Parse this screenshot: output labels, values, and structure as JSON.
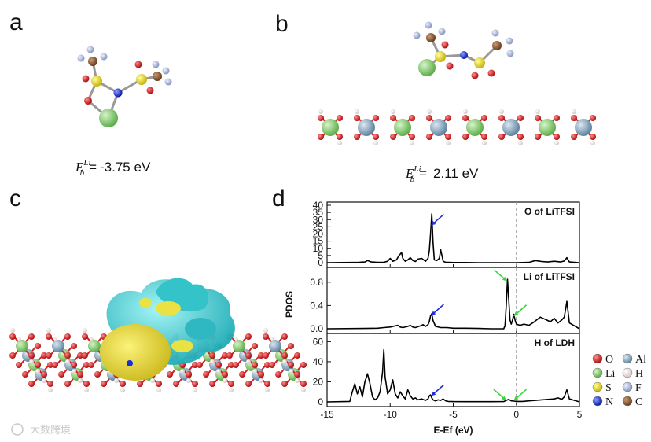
{
  "panels": {
    "a": {
      "label": "a",
      "energy_value": "-3.75 eV"
    },
    "b": {
      "label": "b",
      "energy_value": "2.11 eV"
    },
    "c": {
      "label": "c"
    },
    "d": {
      "label": "d"
    }
  },
  "energy_symbol": {
    "base": "E",
    "sub": "b",
    "sup": "Li",
    "eq": "="
  },
  "legend": {
    "items": [
      {
        "symbol": "O",
        "color": "#d01818"
      },
      {
        "symbol": "Li",
        "color": "#7cc66a"
      },
      {
        "symbol": "S",
        "color": "#e6dc1c"
      },
      {
        "symbol": "N",
        "color": "#1a2fd0"
      },
      {
        "symbol": "Al",
        "color": "#7fa0b6"
      },
      {
        "symbol": "H",
        "color": "#f2dede"
      },
      {
        "symbol": "F",
        "color": "#a9b6d6"
      },
      {
        "symbol": "C",
        "color": "#8a5a36"
      }
    ]
  },
  "watermark": "大数跨境",
  "chart_data": {
    "type": "line",
    "xlabel": "E-Ef (eV)",
    "ylabel": "PDOS",
    "xlim": [
      -15,
      5
    ],
    "xticks": [
      -15,
      -10,
      -5,
      0,
      5
    ],
    "panels": [
      {
        "title": "O of LiTFSI",
        "ylim": [
          0,
          40
        ],
        "yticks": [
          0,
          5,
          10,
          15,
          20,
          25,
          30,
          35,
          40
        ],
        "x": [
          -15,
          -12.5,
          -12,
          -11.8,
          -11.5,
          -11,
          -10.5,
          -10.2,
          -10,
          -9.8,
          -9.5,
          -9.3,
          -9.1,
          -9,
          -8.8,
          -8.6,
          -8.4,
          -8.2,
          -8,
          -7.8,
          -7.5,
          -7.2,
          -7,
          -6.9,
          -6.8,
          -6.7,
          -6.6,
          -6.5,
          -6.3,
          -6.1,
          -6,
          -5.9,
          -5.8,
          -5.6,
          -5.4,
          -5,
          -4,
          -3,
          -2,
          -1,
          0,
          1,
          1.5,
          2,
          2.5,
          3,
          3.5,
          3.8,
          4,
          4.2,
          5
        ],
        "values": [
          0,
          0.2,
          0.5,
          1.5,
          0.5,
          0.3,
          0.3,
          1,
          3,
          1,
          2,
          5,
          7,
          3,
          1,
          2,
          3.5,
          1.5,
          0.8,
          2.5,
          3,
          1,
          3,
          8,
          20,
          34,
          14,
          2,
          1.5,
          3,
          9,
          5,
          1,
          0.3,
          0.2,
          0.1,
          0.1,
          0,
          0,
          0,
          0,
          0.2,
          1.5,
          0.8,
          0.5,
          1,
          0.5,
          1.2,
          3.5,
          0.5,
          0
        ]
      },
      {
        "title": "Li of LiTFSI",
        "ylim": [
          0,
          1.0
        ],
        "yticks": [
          0.0,
          0.4,
          0.8
        ],
        "x": [
          -15,
          -12,
          -11,
          -10.5,
          -10,
          -9.6,
          -9.4,
          -9.2,
          -9,
          -8.6,
          -8.4,
          -8.2,
          -8,
          -7.6,
          -7.4,
          -7.2,
          -7,
          -6.9,
          -6.8,
          -6.7,
          -6.6,
          -6.4,
          -6,
          -5.5,
          -5,
          -4,
          -3,
          -2,
          -1,
          -0.9,
          -0.8,
          -0.7,
          -0.6,
          -0.5,
          -0.4,
          -0.3,
          -0.2,
          -0.1,
          0,
          0.3,
          0.6,
          1,
          1.3,
          1.6,
          1.9,
          2.1,
          2.4,
          2.7,
          3,
          3.3,
          3.6,
          3.8,
          4,
          4.2,
          5
        ],
        "values": [
          0,
          0.005,
          0.01,
          0.02,
          0.03,
          0.05,
          0.06,
          0.03,
          0.02,
          0.04,
          0.06,
          0.03,
          0.02,
          0.05,
          0.07,
          0.04,
          0.07,
          0.12,
          0.22,
          0.26,
          0.14,
          0.04,
          0.02,
          0.02,
          0.01,
          0.01,
          0.005,
          0,
          0,
          0.05,
          0.4,
          0.85,
          0.5,
          0.15,
          0.08,
          0.15,
          0.25,
          0.15,
          0.08,
          0.06,
          0.08,
          0.06,
          0.1,
          0.15,
          0.2,
          0.18,
          0.15,
          0.12,
          0.18,
          0.1,
          0.15,
          0.2,
          0.47,
          0.1,
          0
        ]
      },
      {
        "title": "H of LDH",
        "ylim": [
          0,
          65
        ],
        "yticks": [
          0,
          20,
          40,
          60
        ],
        "x": [
          -15,
          -13.2,
          -13,
          -12.8,
          -12.6,
          -12.4,
          -12.2,
          -12,
          -11.8,
          -11.6,
          -11.4,
          -11.2,
          -11,
          -10.8,
          -10.6,
          -10.5,
          -10.4,
          -10.2,
          -10,
          -9.8,
          -9.6,
          -9.4,
          -9.2,
          -9,
          -8.8,
          -8.6,
          -8.4,
          -8.2,
          -8,
          -7.8,
          -7.5,
          -7.2,
          -7,
          -6.9,
          -6.8,
          -6.7,
          -6.6,
          -6.4,
          -6.2,
          -6,
          -5.8,
          -5.6,
          -5.4,
          -5,
          -4,
          -3,
          -2,
          -1,
          -0.8,
          -0.6,
          -0.4,
          -0.2,
          0,
          0.5,
          1,
          1.5,
          2,
          2.5,
          3,
          3.3,
          3.6,
          3.8,
          4,
          4.2,
          5
        ],
        "values": [
          0,
          0.5,
          10,
          18,
          8,
          15,
          5,
          20,
          28,
          18,
          5,
          2,
          4,
          10,
          30,
          52,
          25,
          8,
          12,
          22,
          8,
          4,
          10,
          6,
          3,
          12,
          6,
          3,
          4,
          2,
          3,
          1.5,
          3,
          6,
          7,
          4,
          2,
          1,
          2,
          1.5,
          3,
          1,
          0.5,
          0.3,
          0.2,
          0.2,
          0.2,
          0.3,
          1.5,
          2.5,
          1,
          0.8,
          0.5,
          0.5,
          1,
          1.5,
          2,
          2.5,
          3,
          4,
          2.5,
          5,
          12,
          3,
          0
        ]
      }
    ],
    "arrows": [
      {
        "panel": 0,
        "color": "#1e2fd6",
        "tip_x": -6.75,
        "tip_y": 26
      },
      {
        "panel": 1,
        "color": "#1e2fd6",
        "tip_x": -6.75,
        "tip_y": 0.23
      },
      {
        "panel": 1,
        "color": "#35d635",
        "tip_x": -0.75,
        "tip_y": 0.82
      },
      {
        "panel": 1,
        "color": "#35d635",
        "tip_x": -0.2,
        "tip_y": 0.22
      },
      {
        "panel": 2,
        "color": "#1e2fd6",
        "tip_x": -6.75,
        "tip_y": 6
      },
      {
        "panel": 2,
        "color": "#35d635",
        "tip_x": -0.8,
        "tip_y": 1.5
      },
      {
        "panel": 2,
        "color": "#35d635",
        "tip_x": -0.2,
        "tip_y": 1.5
      }
    ],
    "dashed_x": 0
  }
}
